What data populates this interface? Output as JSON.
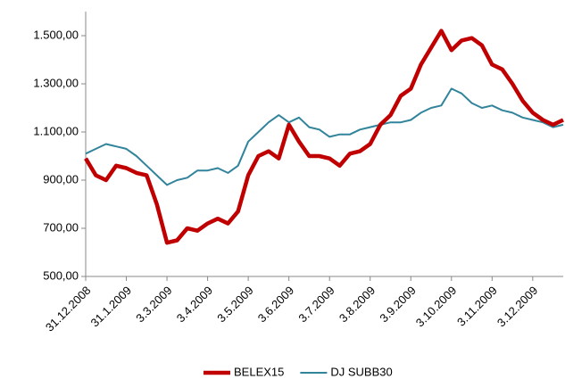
{
  "chart_data": {
    "type": "line",
    "categories": [
      "31.12.2008",
      null,
      null,
      null,
      "31.1.2009",
      null,
      null,
      null,
      "3.3.2009",
      null,
      null,
      null,
      "3.4.2009",
      null,
      null,
      null,
      "3.5.2009",
      null,
      null,
      null,
      "3.6.2009",
      null,
      null,
      null,
      "3.7.2009",
      null,
      null,
      null,
      "3.8.2009",
      null,
      null,
      null,
      "3.9.2009",
      null,
      null,
      null,
      "3.10.2009",
      null,
      null,
      null,
      "3.11.2009",
      null,
      null,
      null,
      "3.12.2009",
      null,
      null,
      null
    ],
    "series": [
      {
        "name": "BELEX15",
        "color": "#c00000",
        "width": 4.5,
        "values": [
          990,
          920,
          900,
          960,
          950,
          930,
          920,
          800,
          640,
          650,
          700,
          690,
          720,
          740,
          720,
          770,
          920,
          1000,
          1020,
          990,
          1130,
          1060,
          1000,
          1000,
          990,
          960,
          1010,
          1020,
          1050,
          1130,
          1170,
          1250,
          1280,
          1380,
          1450,
          1520,
          1440,
          1480,
          1490,
          1460,
          1380,
          1360,
          1300,
          1230,
          1180,
          1150,
          1130,
          1150
        ]
      },
      {
        "name": "DJ SUBB30",
        "color": "#31849b",
        "width": 2,
        "values": [
          1010,
          1030,
          1050,
          1040,
          1030,
          1000,
          960,
          920,
          880,
          900,
          910,
          940,
          940,
          950,
          930,
          960,
          1060,
          1100,
          1140,
          1170,
          1140,
          1160,
          1120,
          1110,
          1080,
          1090,
          1090,
          1110,
          1120,
          1130,
          1140,
          1140,
          1150,
          1180,
          1200,
          1210,
          1280,
          1260,
          1220,
          1200,
          1210,
          1190,
          1180,
          1160,
          1150,
          1140,
          1120,
          1130
        ]
      }
    ],
    "ylim": [
      500,
      1600
    ],
    "yticks": [
      {
        "value": 500,
        "label": "500,00"
      },
      {
        "value": 700,
        "label": "700,00"
      },
      {
        "value": 900,
        "label": "900,00"
      },
      {
        "value": 1100,
        "label": "1.100,00"
      },
      {
        "value": 1300,
        "label": "1.300,00"
      },
      {
        "value": 1500,
        "label": "1.500,00"
      }
    ],
    "legend": "bottom"
  }
}
